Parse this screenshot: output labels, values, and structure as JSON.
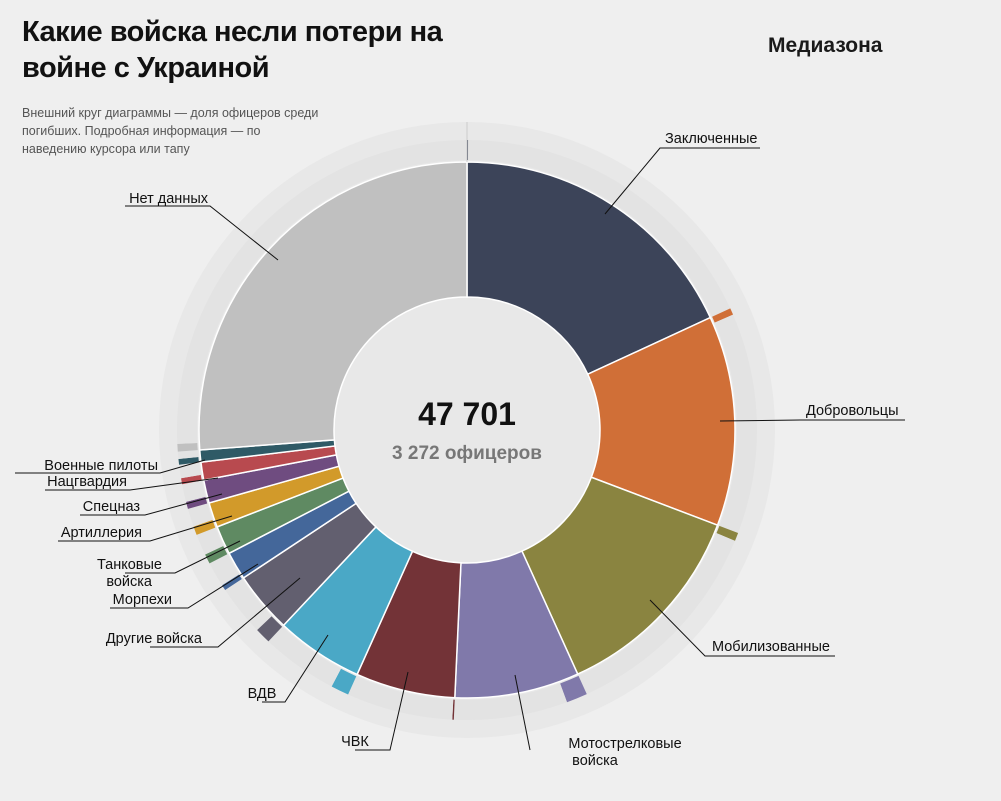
{
  "title": "Какие войска несли потери на войне с Украиной",
  "logo": "Медиазона",
  "subtitle": "Внешний круг диаграммы — доля офицеров среди погибших. Подробная информация — по наведению курсора или тапу",
  "center": {
    "total": "47 701",
    "officers": "3 272 офицеров"
  },
  "chart_data": {
    "type": "pie",
    "subtype": "donut with outer ring",
    "total": 47701,
    "officers_total": 3272,
    "categories": [
      "Заключенные",
      "Добровольцы",
      "Мобилизованные",
      "Мотострелковые войска",
      "ЧВК",
      "ВДВ",
      "Другие войска",
      "Морпехи",
      "Танковые войска",
      "Артиллерия",
      "Спецназ",
      "Нацгвардия",
      "Военные пилоты",
      "Нет данных"
    ],
    "values": [
      8640,
      6042,
      5936,
      3578,
      2862,
      2518,
      1762,
      808,
      822,
      716,
      663,
      517,
      345,
      12492
    ],
    "officers": [
      30,
      180,
      220,
      560,
      40,
      480,
      420,
      150,
      260,
      230,
      190,
      160,
      150,
      202
    ],
    "colors": [
      "#3c4459",
      "#d06f37",
      "#8a8440",
      "#8079aa",
      "#733337",
      "#4aa8c6",
      "#625f6f",
      "#44679a",
      "#5f8a62",
      "#d29a2a",
      "#6f4c80",
      "#b84a4f",
      "#2f5a66",
      "#c0c0c0"
    ],
    "ring_gray": "#e3e3e3",
    "outer_bg": "#e8e8e8"
  }
}
